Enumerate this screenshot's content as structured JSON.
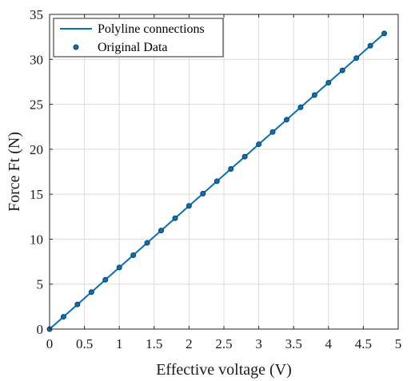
{
  "chart_data": {
    "type": "line",
    "title": "",
    "xlabel": "Effective voltage (V)",
    "ylabel": "Force Ft (N)",
    "xlim": [
      0,
      5
    ],
    "ylim": [
      0,
      35
    ],
    "x_ticks": [
      0,
      0.5,
      1,
      1.5,
      2,
      2.5,
      3,
      3.5,
      4,
      4.5,
      5
    ],
    "x_tick_labels": [
      "0",
      "0.5",
      "1",
      "1.5",
      "2",
      "2.5",
      "3",
      "3.5",
      "4",
      "4.5",
      "5"
    ],
    "y_ticks": [
      0,
      5,
      10,
      15,
      20,
      25,
      30,
      35
    ],
    "y_tick_labels": [
      "0",
      "5",
      "10",
      "15",
      "20",
      "25",
      "30",
      "35"
    ],
    "grid": true,
    "legend_position": "top-left",
    "series": [
      {
        "name": "Polyline connections",
        "style": "line",
        "color": "#0072BD",
        "x": [
          0,
          0.2,
          0.4,
          0.6,
          0.8,
          1.0,
          1.2,
          1.4,
          1.6,
          1.8,
          2.0,
          2.2,
          2.4,
          2.6,
          2.8,
          3.0,
          3.2,
          3.4,
          3.6,
          3.8,
          4.0,
          4.2,
          4.4,
          4.6,
          4.8
        ],
        "y": [
          0,
          1.37,
          2.74,
          4.11,
          5.48,
          6.85,
          8.22,
          9.59,
          10.96,
          12.33,
          13.7,
          15.07,
          16.44,
          17.81,
          19.18,
          20.55,
          21.92,
          23.29,
          24.66,
          26.03,
          27.4,
          28.77,
          30.14,
          31.51,
          32.88
        ]
      },
      {
        "name": "Original Data",
        "style": "markers",
        "color": "#0072BD",
        "marker_edge_color": "#1a3d55",
        "x": [
          0,
          0.2,
          0.4,
          0.6,
          0.8,
          1.0,
          1.2,
          1.4,
          1.6,
          1.8,
          2.0,
          2.2,
          2.4,
          2.6,
          2.8,
          3.0,
          3.2,
          3.4,
          3.6,
          3.8,
          4.0,
          4.2,
          4.4,
          4.6,
          4.8
        ],
        "y": [
          0,
          1.37,
          2.74,
          4.11,
          5.48,
          6.85,
          8.22,
          9.59,
          10.96,
          12.33,
          13.7,
          15.07,
          16.44,
          17.81,
          19.18,
          20.55,
          21.92,
          23.29,
          24.66,
          26.03,
          27.4,
          28.77,
          30.14,
          31.51,
          32.88
        ]
      }
    ]
  }
}
